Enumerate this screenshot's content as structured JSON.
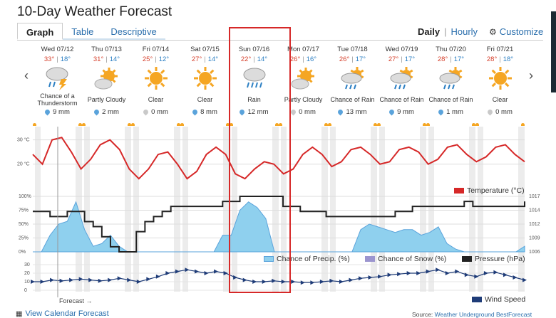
{
  "title": "10-Day Weather Forecast",
  "tabs": [
    "Graph",
    "Table",
    "Descriptive"
  ],
  "view": {
    "daily": "Daily",
    "separator": "|",
    "hourly": "Hourly",
    "customize": "Customize"
  },
  "nav": {
    "prev": "‹",
    "next": "›"
  },
  "days": [
    {
      "date": "Wed 07/12",
      "hi": "33°",
      "lo": "18°",
      "icon": "thunderstorm",
      "cond": "Chance of a Thunderstorm",
      "rain": "9 mm",
      "wet": true
    },
    {
      "date": "Thu 07/13",
      "hi": "31°",
      "lo": "14°",
      "icon": "partly-cloudy",
      "cond": "Partly Cloudy",
      "rain": "2 mm",
      "wet": true
    },
    {
      "date": "Fri 07/14",
      "hi": "25°",
      "lo": "12°",
      "icon": "clear",
      "cond": "Clear",
      "rain": "0 mm",
      "wet": false
    },
    {
      "date": "Sat 07/15",
      "hi": "27°",
      "lo": "14°",
      "icon": "clear",
      "cond": "Clear",
      "rain": "8 mm",
      "wet": true
    },
    {
      "date": "Sun 07/16",
      "hi": "22°",
      "lo": "14°",
      "icon": "rain",
      "cond": "Rain",
      "rain": "12 mm",
      "wet": true
    },
    {
      "date": "Mon 07/17",
      "hi": "26°",
      "lo": "16°",
      "icon": "partly-cloudy",
      "cond": "Partly Cloudy",
      "rain": "0 mm",
      "wet": false
    },
    {
      "date": "Tue 07/18",
      "hi": "26°",
      "lo": "17°",
      "icon": "chance-rain",
      "cond": "Chance of Rain",
      "rain": "13 mm",
      "wet": true
    },
    {
      "date": "Wed 07/19",
      "hi": "27°",
      "lo": "17°",
      "icon": "chance-rain",
      "cond": "Chance of Rain",
      "rain": "9 mm",
      "wet": true
    },
    {
      "date": "Thu 07/20",
      "hi": "28°",
      "lo": "17°",
      "icon": "chance-rain",
      "cond": "Chance of Rain",
      "rain": "1 mm",
      "wet": true
    },
    {
      "date": "Fri 07/21",
      "hi": "28°",
      "lo": "18°",
      "icon": "clear",
      "cond": "Clear",
      "rain": "0 mm",
      "wet": false
    }
  ],
  "chart_data": [
    {
      "type": "line",
      "series": [
        {
          "name": "Temperature (°C)",
          "color": "#d62828",
          "values": [
            24,
            20,
            30,
            31,
            25,
            18,
            22,
            28,
            30,
            26,
            18,
            14,
            18,
            24,
            25,
            20,
            14,
            17,
            24,
            27,
            24,
            16,
            14,
            18,
            21,
            20,
            16,
            18,
            24,
            27,
            24,
            19,
            21,
            26,
            27,
            24,
            20,
            21,
            26,
            27,
            25,
            20,
            22,
            27,
            28,
            24,
            21,
            23,
            27,
            28,
            24,
            21
          ]
        }
      ],
      "yticks": [
        "30 °C",
        "20 °C"
      ]
    },
    {
      "type": "area",
      "series": [
        {
          "name": "Chance of Precip. (%)",
          "color": "#8fd0ee",
          "values": [
            0,
            0,
            30,
            50,
            55,
            90,
            40,
            10,
            15,
            30,
            10,
            0,
            0,
            0,
            0,
            0,
            0,
            0,
            0,
            0,
            0,
            0,
            30,
            30,
            75,
            90,
            80,
            60,
            0,
            0,
            0,
            0,
            0,
            0,
            0,
            0,
            0,
            0,
            40,
            50,
            45,
            40,
            35,
            40,
            40,
            30,
            35,
            45,
            15,
            5,
            0,
            0,
            0,
            0,
            0,
            0,
            0,
            10
          ]
        },
        {
          "name": "Chance of Snow (%)",
          "color": "#9c95cf",
          "values": []
        },
        {
          "name": "Pressure (hPa)",
          "color": "#222222",
          "values": [
            1014,
            1014,
            1013,
            1013,
            1014,
            1014,
            1012,
            1011,
            1009,
            1007,
            1006,
            1006,
            1010,
            1012,
            1013,
            1014,
            1015,
            1015,
            1015,
            1015,
            1015,
            1015,
            1016,
            1016,
            1017,
            1017,
            1017,
            1017,
            1017,
            1015,
            1015,
            1014,
            1014,
            1014,
            1013,
            1013,
            1013,
            1013,
            1013,
            1013,
            1013,
            1013,
            1014,
            1014,
            1015,
            1015,
            1015,
            1015,
            1015,
            1015,
            1016,
            1015,
            1015,
            1015,
            1015,
            1015,
            1015,
            1016
          ]
        }
      ],
      "yticks_left": [
        "100%",
        "75%",
        "50%",
        "25%",
        "0%"
      ],
      "yticks_right": [
        "1017",
        "1014",
        "1012",
        "1009",
        "1006"
      ]
    },
    {
      "type": "line",
      "series": [
        {
          "name": "Wind Speed",
          "color": "#1f3c78",
          "values": [
            10,
            10,
            12,
            11,
            12,
            13,
            12,
            11,
            12,
            14,
            12,
            10,
            13,
            16,
            20,
            22,
            24,
            22,
            20,
            22,
            20,
            15,
            12,
            10,
            10,
            11,
            10,
            10,
            9,
            9,
            10,
            11,
            10,
            12,
            14,
            15,
            16,
            18,
            19,
            20,
            20,
            22,
            24,
            20,
            22,
            18,
            16,
            20,
            21,
            18,
            15,
            12
          ]
        }
      ],
      "yticks": [
        "30",
        "20",
        "10",
        "0"
      ]
    }
  ],
  "legends": {
    "temperature": "Temperature (°C)",
    "precip": "Chance of Precip. (%)",
    "snow": "Chance of Snow (%)",
    "pressure": "Pressure (hPa)",
    "wind": "Wind Speed"
  },
  "colors": {
    "temperature": "#d62828",
    "precip": "#8fd0ee",
    "snow": "#9c95cf",
    "pressure": "#222222",
    "wind": "#1f3c78",
    "highlight": "#d62828"
  },
  "forecast_label": "Forecast →",
  "calendar_link": "View Calendar Forecast",
  "source": {
    "prefix": "Source:",
    "link": "Weather Underground BestForecast"
  }
}
